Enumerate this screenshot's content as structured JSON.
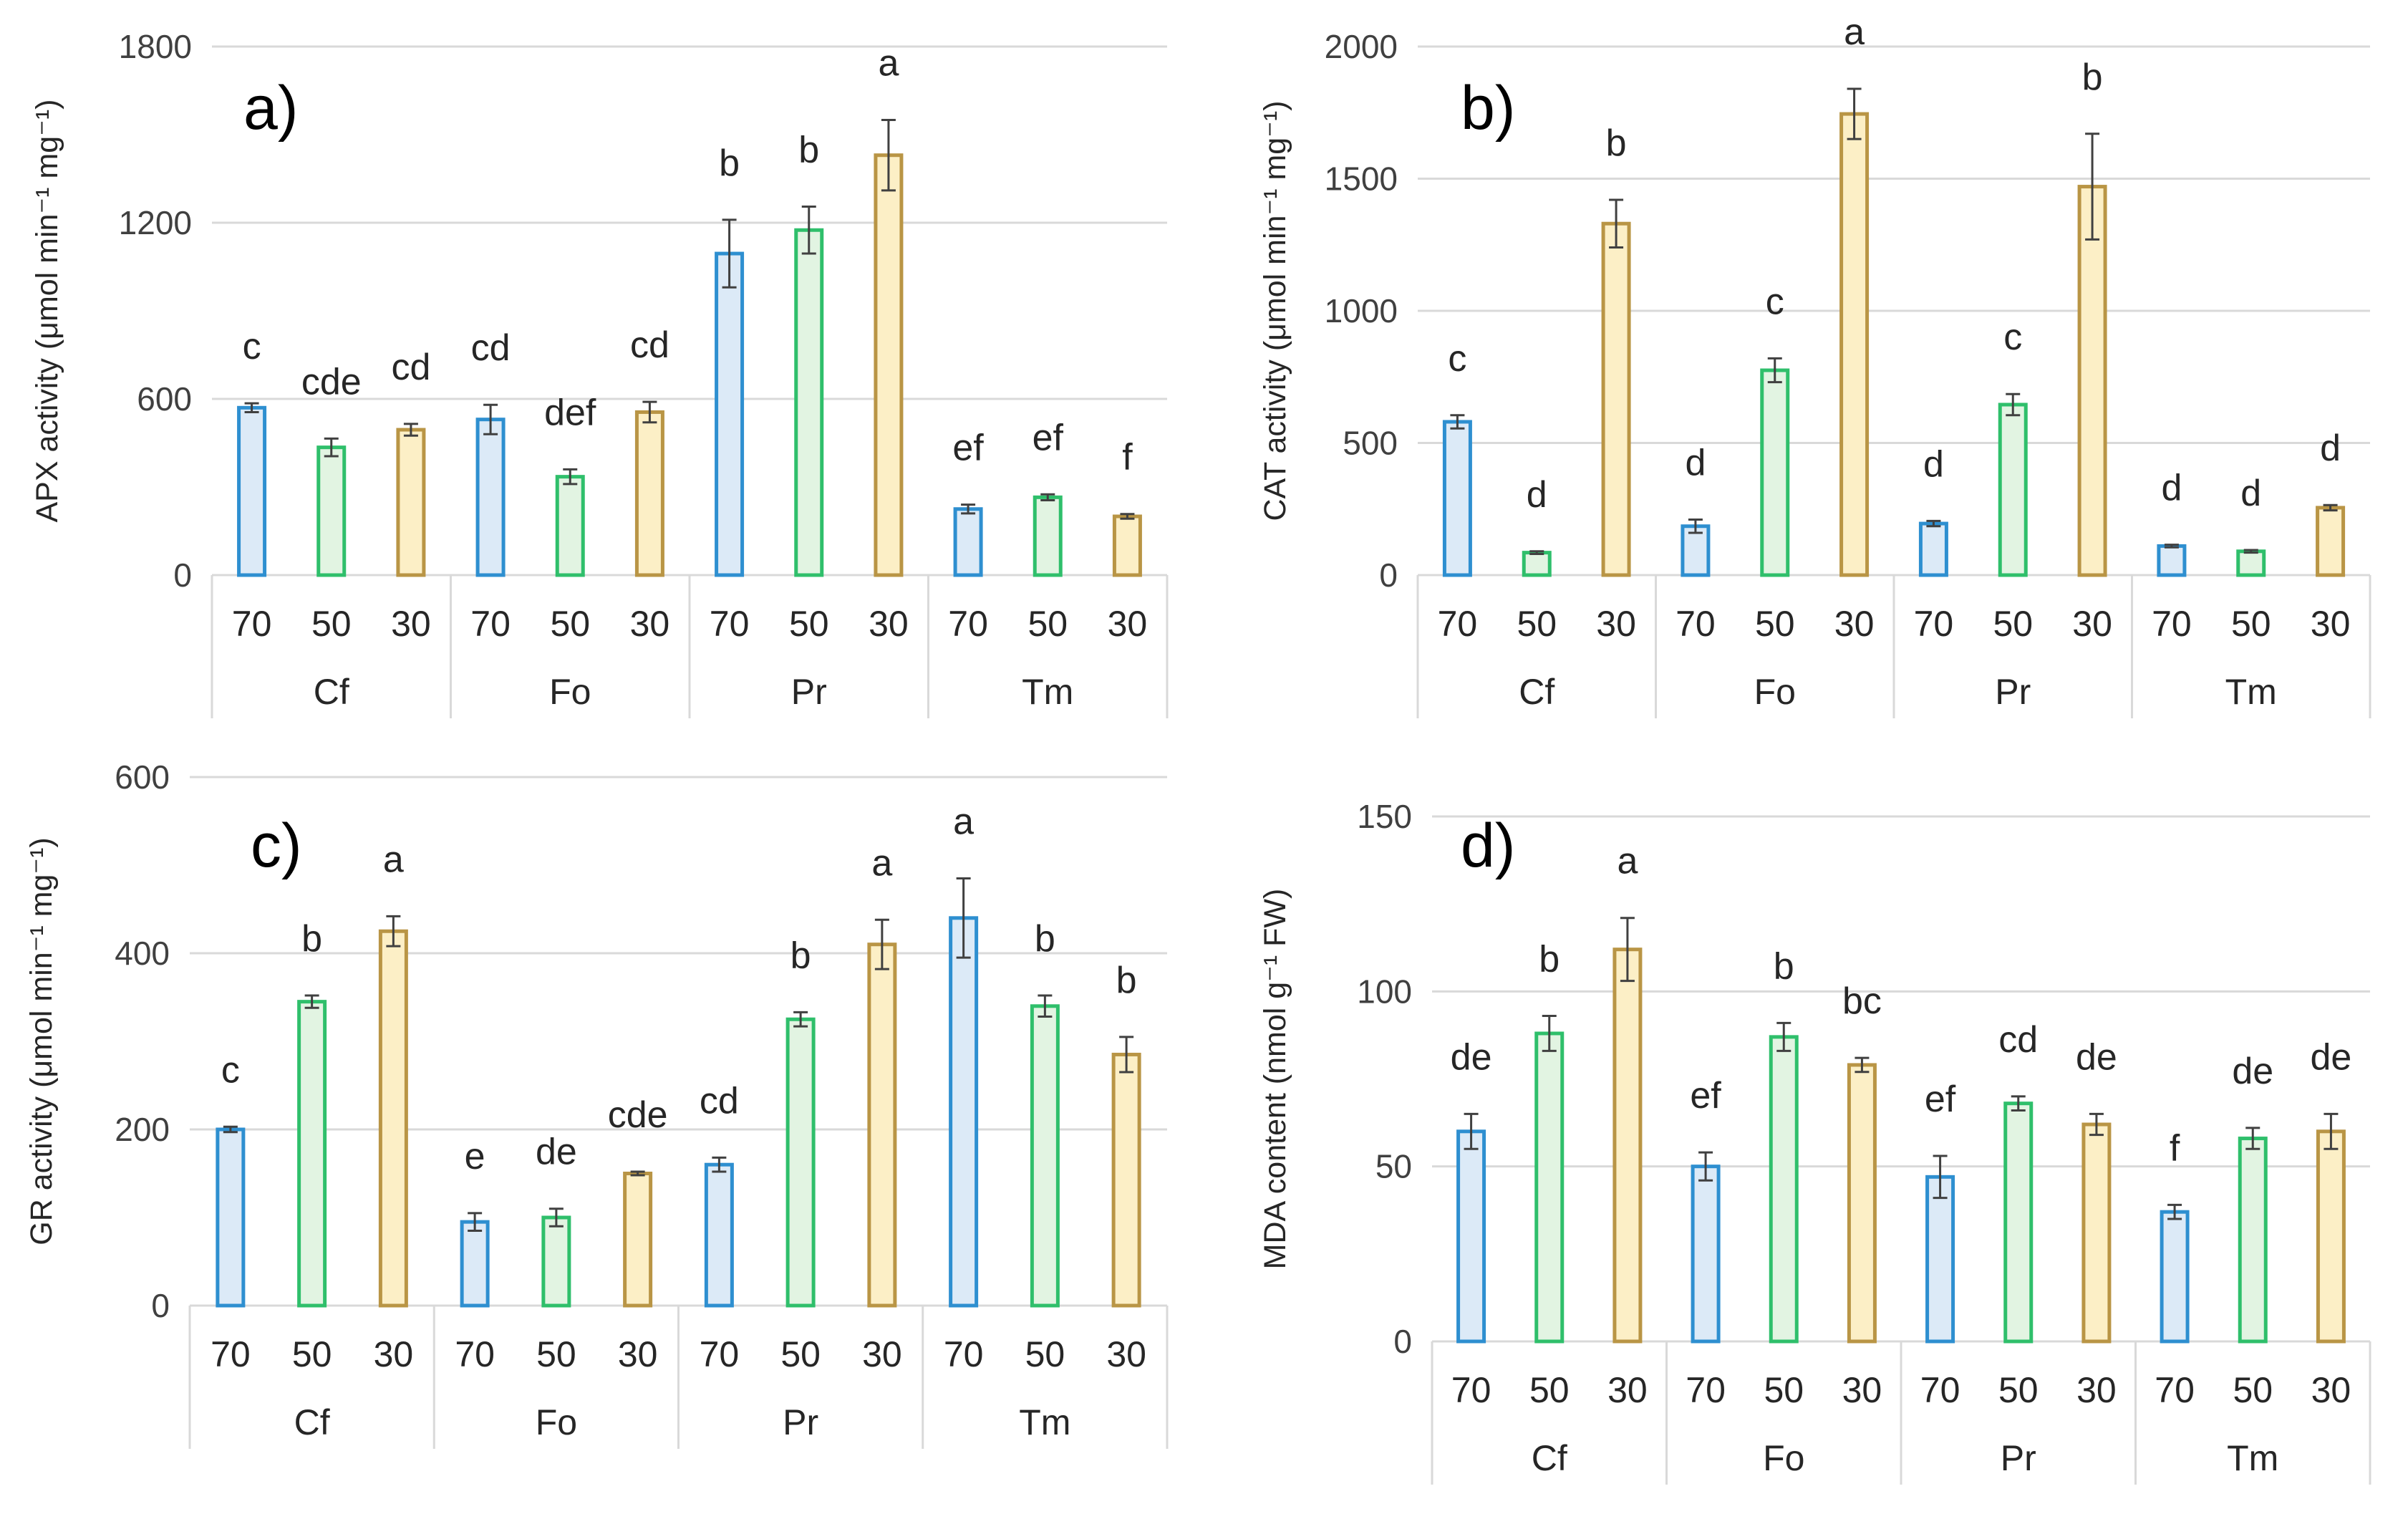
{
  "colors": {
    "fill_70": "#dceaf7",
    "edge_70": "#2e8fd0",
    "fill_50": "#e2f4e2",
    "edge_50": "#2fbf6b",
    "fill_30": "#fcefc6",
    "edge_30": "#b99545"
  },
  "chart_data": [
    {
      "type": "bar",
      "panel_label": "a)",
      "ylabel": "APX activity (μmol min⁻¹ mg⁻¹)",
      "ylim": [
        0,
        1800
      ],
      "yticks": [
        0,
        600,
        1200,
        1800
      ],
      "groups": [
        "Cf",
        "Fo",
        "Pr",
        "Tm"
      ],
      "categories": [
        "70",
        "50",
        "30"
      ],
      "values": [
        [
          570,
          435,
          495
        ],
        [
          530,
          335,
          555
        ],
        [
          1095,
          1175,
          1430
        ],
        [
          225,
          265,
          200
        ]
      ],
      "errors": [
        [
          15,
          30,
          20
        ],
        [
          50,
          25,
          35
        ],
        [
          115,
          80,
          120
        ],
        [
          15,
          10,
          8
        ]
      ],
      "letters": [
        [
          "c",
          "cde",
          "cd"
        ],
        [
          "cd",
          "def",
          "cd"
        ],
        [
          "b",
          "b",
          "a"
        ],
        [
          "ef",
          "ef",
          "f"
        ]
      ]
    },
    {
      "type": "bar",
      "panel_label": "b)",
      "ylabel": "CAT activity (μmol min⁻¹ mg⁻¹)",
      "ylim": [
        0,
        2000
      ],
      "yticks": [
        0,
        500,
        1000,
        1500,
        2000
      ],
      "groups": [
        "Cf",
        "Fo",
        "Pr",
        "Tm"
      ],
      "categories": [
        "70",
        "50",
        "30"
      ],
      "values": [
        [
          580,
          85,
          1330
        ],
        [
          185,
          775,
          1745
        ],
        [
          195,
          645,
          1470
        ],
        [
          110,
          90,
          255
        ]
      ],
      "errors": [
        [
          25,
          5,
          90
        ],
        [
          25,
          45,
          95
        ],
        [
          10,
          40,
          200
        ],
        [
          5,
          5,
          10
        ]
      ],
      "letters": [
        [
          "c",
          "d",
          "b"
        ],
        [
          "d",
          "c",
          "a"
        ],
        [
          "d",
          "c",
          "b"
        ],
        [
          "d",
          "d",
          "d"
        ]
      ]
    },
    {
      "type": "bar",
      "panel_label": "c)",
      "ylabel": "GR activity (μmol min⁻¹ mg⁻¹)",
      "ylim": [
        0,
        600
      ],
      "yticks": [
        0,
        200,
        400,
        600
      ],
      "groups": [
        "Cf",
        "Fo",
        "Pr",
        "Tm"
      ],
      "categories": [
        "70",
        "50",
        "30"
      ],
      "values": [
        [
          200,
          345,
          425
        ],
        [
          95,
          100,
          150
        ],
        [
          160,
          325,
          410
        ],
        [
          440,
          340,
          285
        ]
      ],
      "errors": [
        [
          3,
          7,
          17
        ],
        [
          10,
          10,
          2
        ],
        [
          8,
          8,
          28
        ],
        [
          45,
          12,
          20
        ]
      ],
      "letters": [
        [
          "c",
          "b",
          "a"
        ],
        [
          "e",
          "de",
          "cde"
        ],
        [
          "cd",
          "b",
          "a"
        ],
        [
          "a",
          "b",
          "b"
        ]
      ]
    },
    {
      "type": "bar",
      "panel_label": "d)",
      "ylabel": "MDA content (nmol g⁻¹ FW)",
      "ylim": [
        0,
        150
      ],
      "yticks": [
        0,
        50,
        100,
        150
      ],
      "groups": [
        "Cf",
        "Fo",
        "Pr",
        "Tm"
      ],
      "categories": [
        "70",
        "50",
        "30"
      ],
      "values": [
        [
          60,
          88,
          112
        ],
        [
          50,
          87,
          79
        ],
        [
          47,
          68,
          62
        ],
        [
          37,
          58,
          60
        ]
      ],
      "errors": [
        [
          5,
          5,
          9
        ],
        [
          4,
          4,
          2
        ],
        [
          6,
          2,
          3
        ],
        [
          2,
          3,
          5
        ]
      ],
      "letters": [
        [
          "de",
          "b",
          "a"
        ],
        [
          "ef",
          "b",
          "bc"
        ],
        [
          "ef",
          "cd",
          "de"
        ],
        [
          "f",
          "de",
          "de"
        ]
      ]
    }
  ]
}
